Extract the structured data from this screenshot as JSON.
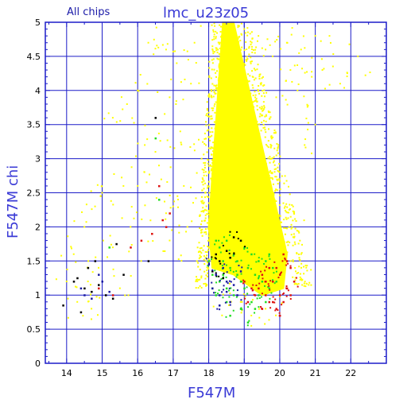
{
  "chart_data": {
    "type": "scatter",
    "title": "lmc_u23z05",
    "subtitle": "All chips",
    "xlabel": "F547M",
    "ylabel": "F547M chi",
    "xlim": [
      13.4,
      23.0
    ],
    "ylim": [
      0,
      5
    ],
    "x_ticks": [
      "14",
      "15",
      "16",
      "17",
      "18",
      "19",
      "20",
      "21",
      "22"
    ],
    "y_ticks": [
      "0",
      "0.5",
      "1",
      "1.5",
      "2",
      "2.5",
      "3",
      "3.5",
      "4",
      "4.5",
      "5"
    ],
    "grid": true,
    "colors": {
      "frame": "#1c1cc8",
      "grid": "#1c1cc8",
      "yellow": "#ffff00",
      "green": "#22dd22",
      "red": "#dd1111",
      "black": "#000000",
      "blue": "#1a1aa0"
    },
    "series": [
      {
        "color": "yellow",
        "dense_band": [
          [
            18.0,
            2.0
          ],
          [
            18.4,
            5.0
          ],
          [
            18.7,
            5.0
          ],
          [
            20.2,
            1.6
          ],
          [
            20.1,
            1.1
          ],
          [
            19.5,
            1.0
          ],
          [
            18.7,
            1.3
          ],
          [
            18.1,
            1.4
          ]
        ],
        "sparse": [
          [
            15.3,
            3.6
          ],
          [
            15.6,
            2.6
          ],
          [
            16.0,
            4.0
          ],
          [
            16.3,
            4.7
          ],
          [
            16.8,
            4.6
          ],
          [
            16.9,
            3.9
          ],
          [
            17.2,
            3.4
          ],
          [
            17.5,
            4.1
          ],
          [
            17.3,
            2.6
          ],
          [
            17.0,
            2.3
          ],
          [
            16.8,
            2.2
          ],
          [
            16.4,
            1.9
          ],
          [
            16.0,
            2.6
          ],
          [
            15.8,
            2.0
          ],
          [
            15.3,
            1.7
          ],
          [
            14.9,
            1.4
          ],
          [
            14.6,
            1.2
          ],
          [
            14.2,
            1.6
          ],
          [
            14.5,
            2.0
          ],
          [
            14.8,
            2.3
          ],
          [
            15.0,
            2.5
          ],
          [
            16.5,
            3.1
          ],
          [
            16.2,
            3.2
          ],
          [
            17.6,
            4.7
          ],
          [
            19.4,
            4.8
          ],
          [
            19.8,
            4.5
          ],
          [
            20.3,
            4.3
          ],
          [
            20.6,
            4.6
          ],
          [
            21.0,
            4.8
          ],
          [
            20.9,
            4.2
          ],
          [
            21.4,
            4.8
          ],
          [
            20.5,
            4.0
          ],
          [
            19.9,
            3.9
          ],
          [
            21.0,
            3.5
          ],
          [
            20.7,
            3.2
          ],
          [
            20.4,
            2.2
          ],
          [
            20.6,
            1.6
          ],
          [
            21.7,
            4.1
          ],
          [
            22.2,
            4.5
          ],
          [
            15.7,
            3.8
          ],
          [
            16.6,
            2.9
          ],
          [
            17.4,
            2.0
          ],
          [
            19.0,
            4.9
          ],
          [
            19.6,
            4.6
          ],
          [
            20.2,
            4.7
          ],
          [
            21.2,
            4.3
          ],
          [
            17.1,
            4.4
          ],
          [
            16.9,
            1.8
          ],
          [
            16.1,
            1.5
          ],
          [
            15.5,
            1.1
          ],
          [
            14.3,
            0.9
          ],
          [
            14.0,
            1.2
          ],
          [
            14.7,
            0.8
          ],
          [
            17.8,
            3.0
          ],
          [
            17.9,
            2.5
          ],
          [
            18.9,
            0.9
          ],
          [
            19.2,
            0.7
          ],
          [
            19.6,
            0.8
          ],
          [
            20.0,
            0.7
          ],
          [
            18.6,
            0.9
          ],
          [
            18.3,
            1.0
          ]
        ]
      },
      {
        "color": "green",
        "points": [
          [
            18.1,
            1.3
          ],
          [
            18.3,
            1.2
          ],
          [
            18.5,
            1.1
          ],
          [
            18.7,
            1.0
          ],
          [
            18.9,
            1.2
          ],
          [
            19.1,
            1.4
          ],
          [
            19.3,
            1.3
          ],
          [
            19.5,
            1.2
          ],
          [
            19.7,
            1.1
          ],
          [
            18.4,
            1.5
          ],
          [
            18.6,
            1.4
          ],
          [
            18.8,
            1.3
          ],
          [
            19.0,
            1.1
          ],
          [
            19.2,
            0.9
          ],
          [
            19.4,
            1.0
          ],
          [
            19.6,
            1.5
          ],
          [
            19.8,
            1.4
          ],
          [
            18.2,
            1.0
          ],
          [
            18.5,
            0.9
          ],
          [
            18.9,
            0.8
          ],
          [
            19.3,
            0.8
          ],
          [
            18.7,
            1.6
          ],
          [
            19.0,
            1.7
          ],
          [
            18.3,
            1.7
          ],
          [
            16.6,
            2.4
          ],
          [
            16.5,
            3.3
          ],
          [
            15.2,
            1.7
          ],
          [
            19.1,
            0.6
          ],
          [
            18.6,
            0.7
          ],
          [
            19.9,
            1.2
          ],
          [
            18.0,
            1.5
          ],
          [
            18.4,
            1.3
          ],
          [
            18.8,
            1.5
          ],
          [
            19.4,
            1.5
          ],
          [
            19.6,
            0.9
          ],
          [
            18.2,
            1.8
          ],
          [
            18.5,
            1.8
          ],
          [
            19.2,
            1.6
          ],
          [
            18.1,
            1.1
          ],
          [
            19.7,
            1.6
          ]
        ]
      },
      {
        "color": "red",
        "points": [
          [
            19.4,
            1.1
          ],
          [
            19.6,
            1.0
          ],
          [
            19.8,
            1.2
          ],
          [
            20.0,
            1.3
          ],
          [
            20.2,
            1.1
          ],
          [
            20.1,
            0.9
          ],
          [
            19.9,
            0.8
          ],
          [
            19.7,
            0.9
          ],
          [
            19.5,
            0.8
          ],
          [
            19.3,
            1.0
          ],
          [
            20.3,
            1.4
          ],
          [
            20.0,
            1.0
          ],
          [
            19.8,
            0.9
          ],
          [
            20.2,
            1.5
          ],
          [
            19.6,
            1.2
          ],
          [
            19.2,
            1.1
          ],
          [
            20.4,
            1.2
          ],
          [
            19.9,
            1.4
          ],
          [
            20.1,
            1.6
          ],
          [
            19.5,
            1.3
          ],
          [
            16.6,
            2.6
          ],
          [
            16.7,
            2.1
          ],
          [
            16.9,
            2.2
          ],
          [
            16.8,
            2.0
          ],
          [
            16.4,
            1.9
          ],
          [
            15.8,
            1.7
          ],
          [
            16.1,
            1.8
          ],
          [
            14.9,
            1.1
          ],
          [
            15.3,
            1.0
          ],
          [
            19.0,
            1.2
          ],
          [
            19.1,
            0.9
          ],
          [
            20.0,
            0.7
          ],
          [
            19.7,
            1.4
          ],
          [
            20.3,
            1.0
          ]
        ]
      },
      {
        "color": "black",
        "points": [
          [
            13.9,
            0.85
          ],
          [
            14.2,
            1.2
          ],
          [
            14.3,
            1.25
          ],
          [
            14.5,
            1.1
          ],
          [
            14.6,
            1.4
          ],
          [
            14.7,
            1.05
          ],
          [
            14.8,
            1.5
          ],
          [
            14.9,
            1.15
          ],
          [
            15.1,
            1.0
          ],
          [
            15.3,
            0.95
          ],
          [
            15.4,
            1.75
          ],
          [
            15.6,
            1.3
          ],
          [
            14.4,
            0.75
          ],
          [
            16.5,
            3.6
          ],
          [
            16.3,
            1.5
          ],
          [
            18.1,
            1.35
          ],
          [
            18.3,
            1.5
          ],
          [
            18.5,
            1.65
          ],
          [
            18.7,
            1.85
          ],
          [
            18.9,
            1.8
          ],
          [
            18.4,
            1.25
          ],
          [
            18.6,
            1.55
          ],
          [
            18.2,
            1.6
          ]
        ]
      },
      {
        "color": "blue",
        "points": [
          [
            14.5,
            1.0
          ],
          [
            14.7,
            0.95
          ],
          [
            14.9,
            1.3
          ],
          [
            15.0,
            1.2
          ],
          [
            15.2,
            1.05
          ],
          [
            14.4,
            1.1
          ],
          [
            18.1,
            1.1
          ],
          [
            18.3,
            1.0
          ],
          [
            18.5,
            1.2
          ],
          [
            18.6,
            0.9
          ],
          [
            18.2,
            1.3
          ],
          [
            18.4,
            1.4
          ],
          [
            18.8,
            1.0
          ],
          [
            18.3,
            0.85
          ],
          [
            18.5,
            1.05
          ],
          [
            18.9,
            1.35
          ],
          [
            18.0,
            1.45
          ],
          [
            18.7,
            1.15
          ]
        ]
      }
    ]
  }
}
